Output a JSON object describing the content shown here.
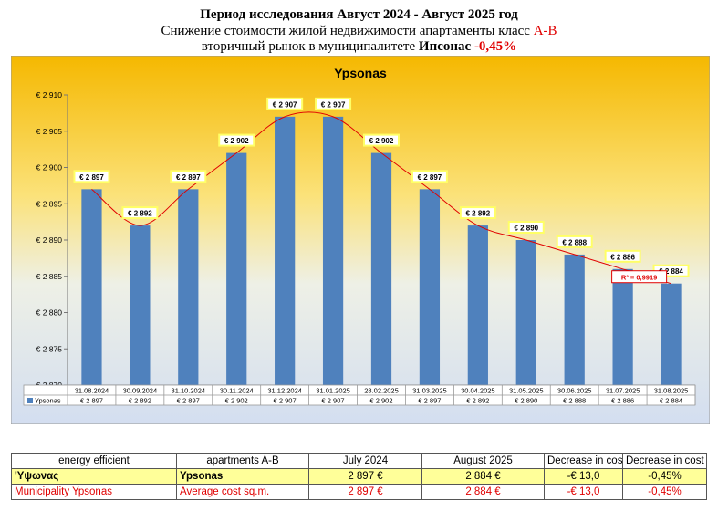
{
  "header": {
    "line1": "Период исследования Август 2024 - Август 2025 год",
    "line2_main": "Снижение стоимости жилой недвижимости апартаменты класс ",
    "line2_class": "A-B",
    "line3_main": "вторичный рынок в муниципалитете ",
    "line3_city": "Ипсонас",
    "line3_change": "-0,45%"
  },
  "chart_data": {
    "type": "bar",
    "title": "Ypsonas",
    "categories": [
      "31.08.2024",
      "30.09.2024",
      "31.10.2024",
      "30.11.2024",
      "31.12.2024",
      "31.01.2025",
      "28.02.2025",
      "31.03.2025",
      "30.04.2025",
      "31.05.2025",
      "30.06.2025",
      "31.07.2025",
      "31.08.2025"
    ],
    "series": [
      {
        "name": "Ypsonas",
        "values": [
          2897,
          2892,
          2897,
          2902,
          2907,
          2907,
          2902,
          2897,
          2892,
          2890,
          2888,
          2886,
          2884
        ]
      }
    ],
    "data_labels": [
      "€ 2 897",
      "€ 2 892",
      "€ 2 897",
      "€ 2 902",
      "€ 2 907",
      "€ 2 907",
      "€ 2 902",
      "€ 2 897",
      "€ 2 892",
      "€ 2 890",
      "€ 2 888",
      "€ 2 886",
      "€ 2 884"
    ],
    "table_values": [
      "€ 2 897",
      "€ 2 892",
      "€ 2 897",
      "€ 2 902",
      "€ 2 907",
      "€ 2 907",
      "€ 2 902",
      "€ 2 897",
      "€ 2 892",
      "€ 2 890",
      "€ 2 888",
      "€ 2 886",
      "€ 2 884"
    ],
    "ylim": [
      2870,
      2910
    ],
    "yticks": [
      2870,
      2875,
      2880,
      2885,
      2890,
      2895,
      2900,
      2905,
      2910
    ],
    "ytick_labels": [
      "€ 2 870",
      "€ 2 875",
      "€ 2 880",
      "€ 2 885",
      "€ 2 890",
      "€ 2 895",
      "€ 2 900",
      "€ 2 905",
      "€ 2 910"
    ],
    "trendline": {
      "type": "polynomial",
      "r2_label": "R² = 0,9919"
    },
    "legend_label": "Ypsonas",
    "legend": "data-table",
    "grid": false,
    "colors": {
      "bar": "#4f81bd",
      "trend": "#e00000",
      "label_bg": "#ffff66",
      "bg_top": "#f5b800",
      "bg_bottom": "#dde6f4"
    }
  },
  "table": {
    "header": [
      "energy efficient",
      "apartments A-B",
      "July 2024",
      "August 2025",
      "Decrease in cost",
      "Decrease in cost %"
    ],
    "row1": [
      "'Υψωνας",
      "Ypsonas",
      "2 897 €",
      "2 884 €",
      "-€ 13,0",
      "-0,45%"
    ],
    "row2": [
      "Municipality Ypsonas",
      "Average cost sq.m.",
      "2 897 €",
      "2 884 €",
      "-€ 13,0",
      "-0,45%"
    ]
  }
}
